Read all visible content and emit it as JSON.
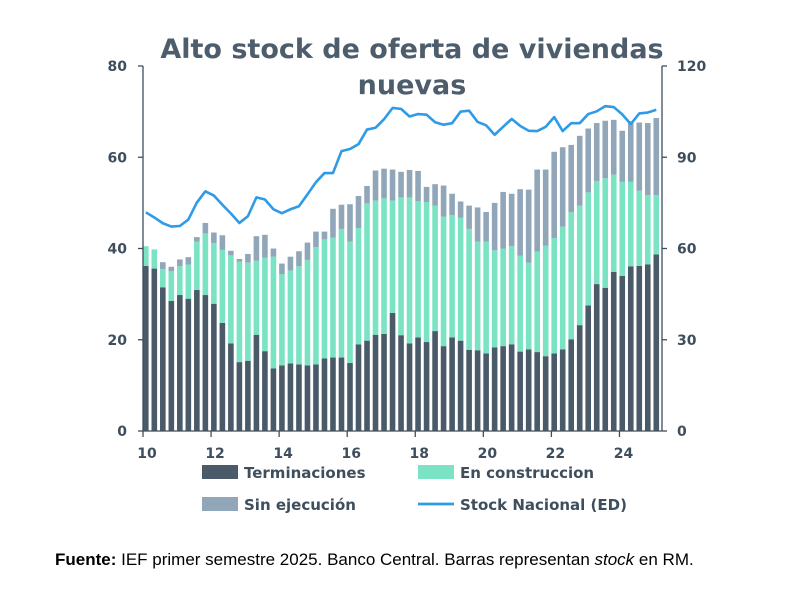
{
  "colors": {
    "terminaciones": "#4a5a69",
    "en_construccion": "#7ae3c3",
    "sin_ejecucion": "#91a7b9",
    "stock_nacional": "#2f9be6",
    "axis": "#3e4e5c"
  },
  "chart_data": {
    "type": "bar",
    "stacked": true,
    "title": [
      "Alto stock de oferta de viviendas",
      "nuevas"
    ],
    "x_axis": {
      "ticks": [
        "10",
        "12",
        "14",
        "16",
        "18",
        "20",
        "22",
        "24"
      ],
      "range": [
        2010,
        2025.25
      ],
      "unit": "year (quarterly)"
    },
    "y_left": {
      "ticks": [
        "0",
        "20",
        "40",
        "60",
        "80"
      ],
      "range": [
        0,
        80
      ]
    },
    "y_right": {
      "ticks": [
        "0",
        "30",
        "60",
        "90",
        "120"
      ],
      "range": [
        0,
        120
      ]
    },
    "legend_position": "bottom",
    "x": [
      2010.0,
      2010.25,
      2010.5,
      2010.75,
      2011.0,
      2011.25,
      2011.5,
      2011.75,
      2012.0,
      2012.25,
      2012.5,
      2012.75,
      2013.0,
      2013.25,
      2013.5,
      2013.75,
      2014.0,
      2014.25,
      2014.5,
      2014.75,
      2015.0,
      2015.25,
      2015.5,
      2015.75,
      2016.0,
      2016.25,
      2016.5,
      2016.75,
      2017.0,
      2017.25,
      2017.5,
      2017.75,
      2018.0,
      2018.25,
      2018.5,
      2018.75,
      2019.0,
      2019.25,
      2019.5,
      2019.75,
      2020.0,
      2020.25,
      2020.5,
      2020.75,
      2021.0,
      2021.25,
      2021.5,
      2021.75,
      2022.0,
      2022.25,
      2022.5,
      2022.75,
      2023.0,
      2023.25,
      2023.5,
      2023.75,
      2024.0,
      2024.25,
      2024.5,
      2024.75,
      2025.0
    ],
    "series": [
      {
        "name": "Terminaciones",
        "type": "bar",
        "axis": "left",
        "values": [
          36.2,
          35.6,
          31.5,
          28.5,
          29.8,
          29.0,
          30.9,
          29.8,
          27.9,
          23.7,
          19.2,
          15.1,
          15.4,
          21.1,
          17.5,
          13.7,
          14.4,
          14.8,
          14.6,
          14.4,
          14.6,
          15.9,
          16.1,
          16.1,
          14.9,
          19.0,
          19.8,
          21.1,
          21.3,
          25.9,
          21.0,
          19.2,
          20.5,
          19.5,
          21.9,
          18.6,
          20.5,
          19.8,
          17.8,
          17.7,
          17.0,
          18.3,
          18.6,
          19.0,
          17.4,
          17.9,
          17.3,
          16.4,
          17.0,
          17.9,
          20.1,
          23.2,
          27.5,
          32.2,
          31.4,
          34.9,
          34.0,
          36.1,
          36.2,
          36.5,
          38.7
        ]
      },
      {
        "name": "En construccion",
        "type": "bar",
        "axis": "left",
        "values": [
          4.3,
          4.2,
          4.0,
          6.5,
          6.3,
          7.5,
          10.6,
          13.5,
          13.3,
          16.0,
          19.3,
          22.0,
          21.5,
          16.2,
          20.5,
          24.5,
          20.0,
          20.4,
          21.5,
          23.1,
          25.7,
          26.1,
          26.3,
          28.2,
          26.6,
          25.5,
          30.1,
          29.4,
          29.7,
          24.6,
          30.2,
          32.0,
          29.9,
          30.7,
          27.5,
          28.4,
          26.8,
          27.0,
          26.5,
          23.8,
          24.5,
          21.3,
          21.4,
          21.5,
          21.0,
          19.0,
          22.0,
          24.2,
          25.3,
          26.9,
          27.9,
          26.2,
          24.8,
          22.6,
          24.0,
          21.3,
          20.6,
          18.5,
          16.5,
          15.2,
          13.0
        ]
      },
      {
        "name": "Sin ejecución",
        "type": "bar",
        "axis": "left",
        "values": [
          0.0,
          0.0,
          1.5,
          1.0,
          1.5,
          1.6,
          1.0,
          2.3,
          2.3,
          3.2,
          1.0,
          0.6,
          1.9,
          5.4,
          5.0,
          1.8,
          2.3,
          3.0,
          3.3,
          3.8,
          3.4,
          1.7,
          6.3,
          5.3,
          8.2,
          7.0,
          3.8,
          6.6,
          6.5,
          6.8,
          5.6,
          6.0,
          6.6,
          3.3,
          4.7,
          6.8,
          4.7,
          3.5,
          5.1,
          7.5,
          6.5,
          10.4,
          12.4,
          11.5,
          14.6,
          16.0,
          18.0,
          16.7,
          18.9,
          17.4,
          14.7,
          15.3,
          14.0,
          12.7,
          12.6,
          12.0,
          11.2,
          13.3,
          14.9,
          15.8,
          16.9
        ]
      },
      {
        "name": "Stock Nacional (ED)",
        "type": "line",
        "axis": "right",
        "values": [
          71.9,
          70.2,
          68.3,
          67.2,
          67.4,
          69.5,
          75.1,
          78.8,
          77.4,
          74.4,
          71.5,
          68.4,
          70.6,
          76.8,
          76.1,
          72.9,
          71.6,
          72.9,
          73.9,
          77.8,
          81.8,
          84.8,
          84.8,
          92.0,
          92.7,
          94.3,
          99.1,
          99.7,
          102.5,
          106.2,
          105.9,
          103.4,
          104.2,
          104.0,
          101.5,
          100.7,
          101.2,
          105.0,
          105.3,
          101.6,
          100.5,
          97.4,
          100.0,
          102.6,
          100.3,
          98.7,
          98.6,
          100.0,
          103.2,
          98.6,
          101.2,
          101.2,
          104.2,
          105.1,
          106.8,
          106.5,
          104.1,
          100.9,
          104.4,
          104.7,
          105.6
        ]
      }
    ]
  },
  "legend": [
    {
      "label": "Terminaciones",
      "kind": "box",
      "color_key": "terminaciones"
    },
    {
      "label": "En construccion",
      "kind": "box",
      "color_key": "en_construccion"
    },
    {
      "label": "Sin ejecución",
      "kind": "box",
      "color_key": "sin_ejecucion"
    },
    {
      "label": "Stock Nacional (ED)",
      "kind": "line",
      "color_key": "stock_nacional"
    }
  ],
  "source": {
    "label": "Fuente:",
    "text_before": " IEF primer semestre 2025. Banco Central. Barras representan ",
    "italic": "stock",
    "text_after": " en RM."
  }
}
